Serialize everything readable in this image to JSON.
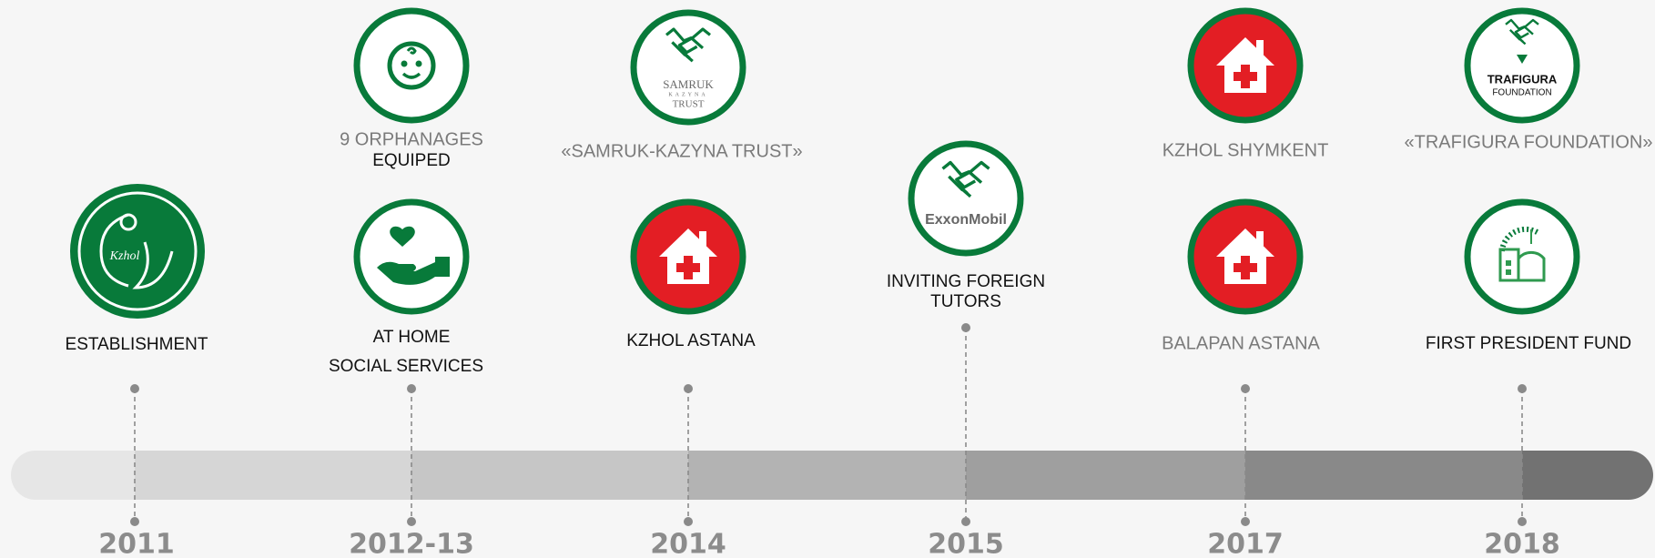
{
  "timeline": [
    {
      "year": "2011",
      "events": [
        {
          "logo_text": "Kzhol",
          "label": "ESTABLISHMENT"
        }
      ]
    },
    {
      "year": "2012-13",
      "events": [
        {
          "label_lines": [
            "9 ORPHANAGES",
            "EQUIPED"
          ]
        },
        {
          "label_lines": [
            "AT HOME",
            "SOCIAL SERVICES"
          ]
        }
      ]
    },
    {
      "year": "2014",
      "events": [
        {
          "logo_lines": [
            "SAMRUK",
            "KAZYNA",
            "TRUST"
          ],
          "label": "«SAMRUK-KAZYNA TRUST»"
        },
        {
          "label": "KZHOL ASTANA"
        }
      ]
    },
    {
      "year": "2015",
      "events": [
        {
          "logo_text": "ExxonMobil",
          "label_lines": [
            "INVITING FOREIGN",
            "TUTORS"
          ]
        }
      ]
    },
    {
      "year": "2017",
      "events": [
        {
          "label": "KZHOL SHYMKENT"
        },
        {
          "label": "BALAPAN ASTANA"
        }
      ]
    },
    {
      "year": "2018",
      "events": [
        {
          "logo_lines": [
            "TRAFIGURA",
            "FOUNDATION"
          ],
          "label": "«TRAFIGURA FOUNDATION»"
        },
        {
          "label": "FIRST PRESIDENT FUND"
        }
      ]
    }
  ]
}
